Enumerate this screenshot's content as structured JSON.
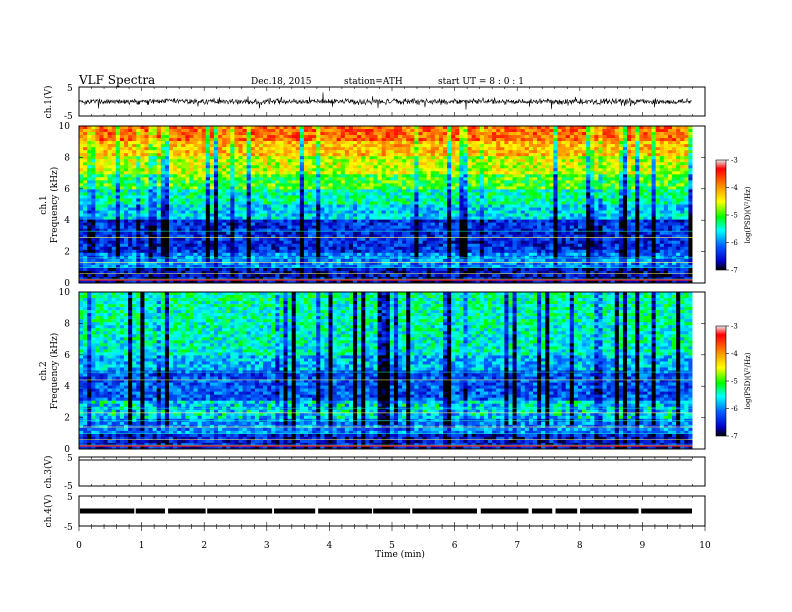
{
  "header": {
    "title": "VLF  Spectra",
    "date": "Dec.18, 2015",
    "station": "station=ATH",
    "start": "start  UT  =   8  : 0  : 1"
  },
  "colorbar": {
    "label": "log(PSD)(V²/Hz)",
    "ticks": [
      "-3",
      "-4",
      "-5",
      "-6",
      "-7"
    ],
    "stops": [
      "#e8e8e8",
      "#ff0000",
      "#ffa000",
      "#ffff00",
      "#00ff00",
      "#00ffff",
      "#0060ff",
      "#0000c0",
      "#000000"
    ]
  },
  "chart_data": [
    {
      "type": "line",
      "name": "ch1-waveform",
      "ylabel": "ch.1(V)",
      "ylim": [
        -5,
        5
      ],
      "yticks": [
        "5",
        "-5"
      ],
      "xlim": [
        0,
        10
      ],
      "y_approx_range": [
        -0.8,
        0.8
      ]
    },
    {
      "type": "heatmap",
      "name": "ch1-spectrogram",
      "ylabel_channel": "ch.1",
      "ylabel": "Frequency  (kHz)",
      "ylim": [
        0,
        10
      ],
      "yticks": [
        "0",
        "2",
        "4",
        "6",
        "8",
        "10"
      ],
      "xlim": [
        0,
        9.8
      ],
      "clim": [
        -7,
        -3
      ],
      "dominant_level_by_freq_kHz": {
        "0-1": -6.6,
        "1-2": -6.0,
        "2-4": -6.4,
        "4-5": -5.7,
        "5-6": -5.4,
        "6-7": -5.0,
        "7-8": -4.6,
        "8-9": -4.2,
        "9-10": -3.8
      }
    },
    {
      "type": "heatmap",
      "name": "ch2-spectrogram",
      "ylabel_channel": "ch.2",
      "ylabel": "Frequency  (kHz)",
      "ylim": [
        0,
        10
      ],
      "yticks": [
        "0",
        "2",
        "4",
        "6",
        "8",
        "10"
      ],
      "xlim": [
        0,
        9.8
      ],
      "clim": [
        -7,
        -3
      ],
      "dominant_level_by_freq_kHz": {
        "0-1": -6.5,
        "1-2": -6.0,
        "2-3": -5.8,
        "3-5": -6.2,
        "5-6": -5.8,
        "6-8": -5.5,
        "8-10": -5.4
      }
    },
    {
      "type": "line",
      "name": "ch3-waveform",
      "ylabel": "ch.3(V)",
      "ylim": [
        -5,
        5
      ],
      "yticks": [
        "5",
        "-5"
      ],
      "xlim": [
        0,
        10
      ],
      "y_approx_range": [
        0,
        0
      ]
    },
    {
      "type": "line",
      "name": "ch4-waveform",
      "ylabel": "ch.4(V)",
      "ylim": [
        -5,
        5
      ],
      "yticks": [
        "5",
        "-5"
      ],
      "xlim": [
        0,
        10
      ],
      "y_approx_range": [
        -0.3,
        0.3
      ]
    }
  ],
  "xaxis": {
    "label": "Time  (min)",
    "ticks": [
      "0",
      "1",
      "2",
      "3",
      "4",
      "5",
      "6",
      "7",
      "8",
      "9",
      "10"
    ]
  }
}
